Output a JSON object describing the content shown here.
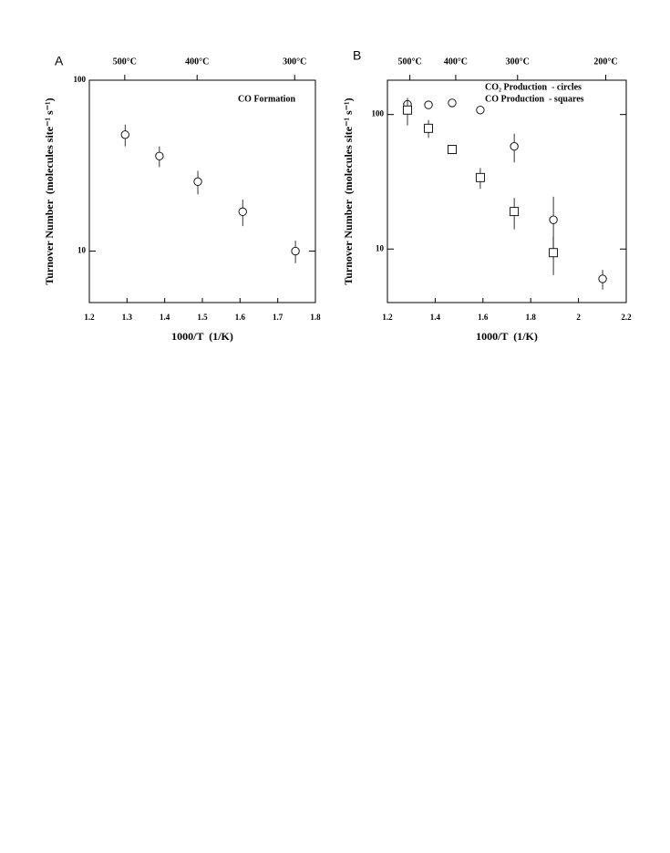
{
  "chart_data": [
    {
      "type": "scatter",
      "panel": "A",
      "annotation": "CO Formation",
      "x_label": "1000/T  (1/K)",
      "y_label": "Turnover Number  (molecules site⁻¹ s⁻¹)",
      "xlim": [
        1.2,
        1.8
      ],
      "xticks": [
        1.2,
        1.3,
        1.4,
        1.5,
        1.6,
        1.7,
        1.8
      ],
      "x2ticks": [
        {
          "value": 1.294,
          "label": "500°C"
        },
        {
          "value": 1.486,
          "label": "400°C"
        },
        {
          "value": 1.745,
          "label": "300°C"
        }
      ],
      "ylim": [
        5,
        100
      ],
      "yticks": [
        10,
        100
      ],
      "yscale": "log",
      "series": [
        {
          "marker": "circle",
          "color": "#000000",
          "x": [
            1.295,
            1.386,
            1.488,
            1.607,
            1.747
          ],
          "values": [
            48,
            36,
            25.5,
            17,
            10
          ],
          "errors": [
            7,
            5,
            4,
            3,
            1.5
          ]
        }
      ]
    },
    {
      "type": "scatter",
      "panel": "B",
      "x_label": "1000/T  (1/K)",
      "y_label": "Turnover Number  (molecules site⁻¹ s⁻¹)",
      "xlim": [
        1.2,
        2.2
      ],
      "xticks": [
        1.2,
        1.4,
        1.6,
        1.8,
        2,
        2.2
      ],
      "x2ticks": [
        {
          "value": 1.294,
          "label": "500°C"
        },
        {
          "value": 1.486,
          "label": "400°C"
        },
        {
          "value": 1.745,
          "label": "300°C"
        },
        {
          "value": 2.114,
          "label": "200°C"
        }
      ],
      "ylim": [
        4,
        180
      ],
      "yticks": [
        10,
        100
      ],
      "yscale": "log",
      "series": [
        {
          "name": "CO₂ Production  - circles",
          "marker": "circle",
          "color": "#000000",
          "x": [
            1.284,
            1.372,
            1.471,
            1.589,
            1.731,
            1.895,
            2.101
          ],
          "values": [
            119,
            118,
            122,
            108,
            58,
            16.5,
            6
          ],
          "errors": [
            8,
            6,
            6,
            8,
            14,
            8,
            1
          ]
        },
        {
          "name": "CO Production  - squares",
          "marker": "square",
          "color": "#000000",
          "x": [
            1.284,
            1.372,
            1.471,
            1.589,
            1.731,
            1.895
          ],
          "values": [
            108,
            79,
            55,
            34,
            19,
            9.4
          ],
          "errors": [
            25,
            12,
            3,
            6,
            5,
            3
          ]
        }
      ]
    }
  ]
}
